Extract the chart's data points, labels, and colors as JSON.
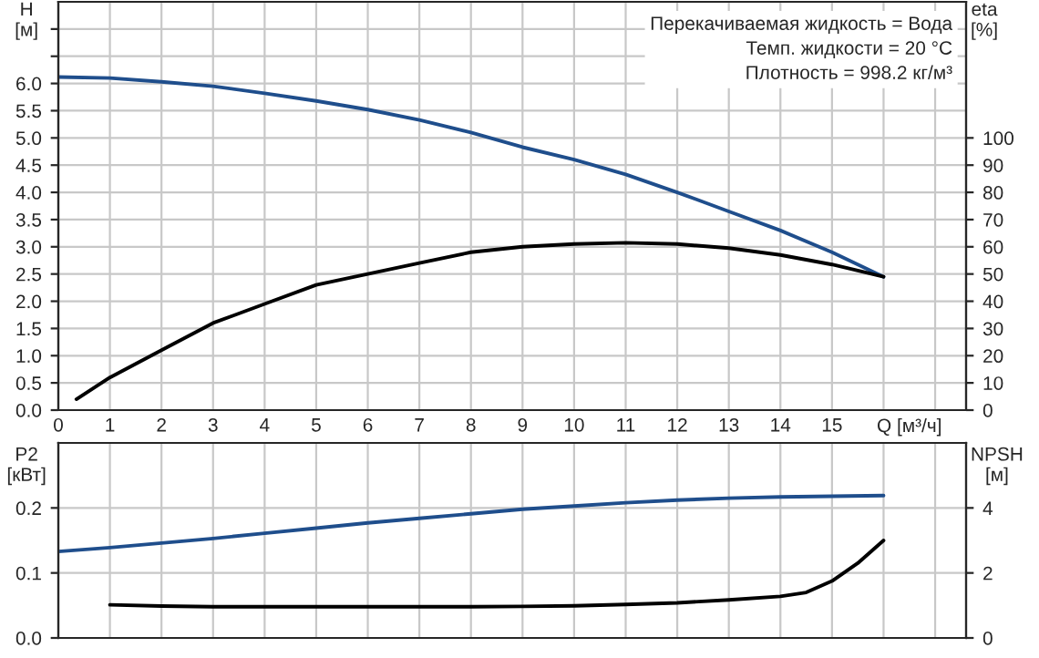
{
  "chart_data": [
    {
      "type": "line",
      "xlabel": "Q [м³/ч]",
      "ylabel": "H\n[м]",
      "y2label": "eta\n[%]",
      "annotations": [
        "Перекачиваемая жидкость = Вода",
        "Темп. жидкости = 20 °C",
        "Плотность = 998.2 кг/м³"
      ],
      "xlim": [
        0,
        17.6
      ],
      "xticks": [
        0,
        1,
        2,
        3,
        4,
        5,
        6,
        7,
        8,
        9,
        10,
        11,
        12,
        13,
        14,
        15,
        {
          "value": 16,
          "label": null
        },
        {
          "value": 17,
          "label": null
        }
      ],
      "ylim": [
        0,
        7.5
      ],
      "yticks": [
        {
          "value": 0,
          "label": "0.0"
        },
        {
          "value": 0.5,
          "label": "0.5"
        },
        {
          "value": 1,
          "label": "1.0"
        },
        {
          "value": 1.5,
          "label": "1.5"
        },
        {
          "value": 2,
          "label": "2.0"
        },
        {
          "value": 2.5,
          "label": "2.5"
        },
        {
          "value": 3,
          "label": "3.0"
        },
        {
          "value": 3.5,
          "label": "3.5"
        },
        {
          "value": 4,
          "label": "4.0"
        },
        {
          "value": 4.5,
          "label": "4.5"
        },
        {
          "value": 5,
          "label": "5.0"
        },
        {
          "value": 5.5,
          "label": "5.5"
        },
        {
          "value": 6,
          "label": "6.0"
        },
        {
          "value": 6.5,
          "label": null
        },
        {
          "value": 7,
          "label": null
        }
      ],
      "y2lim": [
        0,
        150
      ],
      "y2ticks": [
        0,
        10,
        20,
        30,
        40,
        50,
        60,
        70,
        80,
        90,
        100
      ],
      "grid": true,
      "series": [
        {
          "color": "#1f4e8c",
          "x": [
            0,
            1,
            2,
            3,
            4,
            5,
            6,
            7,
            8,
            9,
            10,
            11,
            12,
            13,
            14,
            15,
            16
          ],
          "values": [
            6.12,
            6.1,
            6.03,
            5.95,
            5.82,
            5.68,
            5.52,
            5.33,
            5.1,
            4.83,
            4.6,
            4.33,
            4.0,
            3.65,
            3.3,
            2.9,
            2.45
          ]
        },
        {
          "color": "#000000",
          "axis": "y2",
          "x": [
            0.35,
            1,
            2,
            3,
            4,
            5,
            6,
            7,
            8,
            9,
            10,
            11,
            12,
            13,
            14,
            15,
            16
          ],
          "values": [
            4,
            12,
            22,
            32,
            39,
            46,
            50,
            54,
            58,
            60,
            61,
            61.5,
            61,
            59.5,
            57,
            53.5,
            49
          ]
        }
      ]
    },
    {
      "type": "line",
      "ylabel": "P2\n[кВт]",
      "y2label": "NPSH\n[м]",
      "xlim": [
        0,
        17.6
      ],
      "xticks": [
        {
          "value": 0,
          "label": null
        },
        {
          "value": 1,
          "label": null
        },
        {
          "value": 2,
          "label": null
        },
        {
          "value": 3,
          "label": null
        },
        {
          "value": 4,
          "label": null
        },
        {
          "value": 5,
          "label": null
        },
        {
          "value": 6,
          "label": null
        },
        {
          "value": 7,
          "label": null
        },
        {
          "value": 8,
          "label": null
        },
        {
          "value": 9,
          "label": null
        },
        {
          "value": 10,
          "label": null
        },
        {
          "value": 11,
          "label": null
        },
        {
          "value": 12,
          "label": null
        },
        {
          "value": 13,
          "label": null
        },
        {
          "value": 14,
          "label": null
        },
        {
          "value": 15,
          "label": null
        },
        {
          "value": 16,
          "label": null
        },
        {
          "value": 17,
          "label": null
        }
      ],
      "ylim": [
        0,
        0.3
      ],
      "yticks": [
        {
          "value": 0,
          "label": "0.0"
        },
        {
          "value": 0.1,
          "label": "0.1"
        },
        {
          "value": 0.2,
          "label": "0.2"
        }
      ],
      "y2lim": [
        0,
        6
      ],
      "y2ticks": [
        0,
        2,
        4
      ],
      "grid": true,
      "tick_labels": "y",
      "series": [
        {
          "color": "#1f4e8c",
          "x": [
            0,
            1,
            2,
            3,
            4,
            5,
            6,
            7,
            8,
            9,
            10,
            11,
            12,
            13,
            14,
            15,
            16
          ],
          "values": [
            0.133,
            0.139,
            0.146,
            0.153,
            0.161,
            0.169,
            0.177,
            0.184,
            0.191,
            0.198,
            0.203,
            0.208,
            0.212,
            0.215,
            0.217,
            0.218,
            0.219
          ]
        },
        {
          "color": "#000000",
          "axis": "y2",
          "x": [
            1,
            2,
            3,
            4,
            5,
            6,
            7,
            8,
            9,
            10,
            11,
            12,
            13,
            14,
            14.5,
            15,
            15.5,
            16
          ],
          "values": [
            1.02,
            0.98,
            0.96,
            0.96,
            0.96,
            0.96,
            0.96,
            0.96,
            0.97,
            0.99,
            1.03,
            1.08,
            1.17,
            1.28,
            1.4,
            1.75,
            2.3,
            3.0
          ]
        }
      ]
    }
  ]
}
